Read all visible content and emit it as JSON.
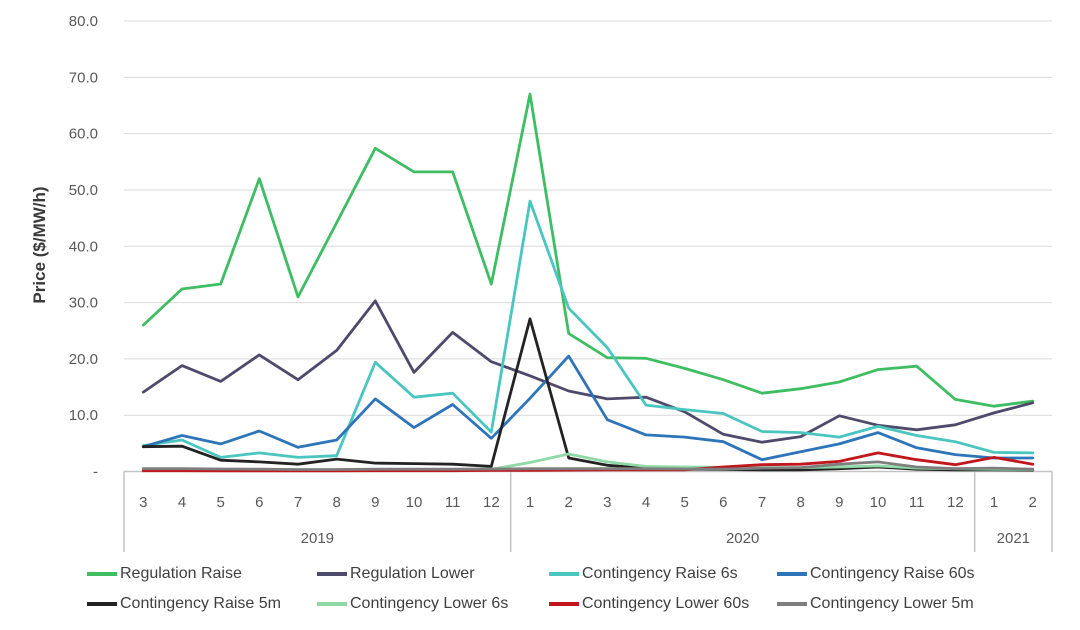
{
  "chart_data": {
    "type": "line",
    "title": "",
    "ylabel": "Price ($/MW/h)",
    "xlabel": "",
    "ylim": [
      0,
      80
    ],
    "grid": true,
    "legend_position": "bottom",
    "y_tick_values": [
      0,
      10,
      20,
      30,
      40,
      50,
      60,
      70,
      80
    ],
    "y_tick_labels": [
      "-",
      "10.0",
      "20.0",
      "30.0",
      "40.0",
      "50.0",
      "60.0",
      "70.0",
      "80.0"
    ],
    "x_groups": [
      {
        "year": "2019",
        "months": [
          "3",
          "4",
          "5",
          "6",
          "7",
          "8",
          "9",
          "10",
          "11",
          "12"
        ]
      },
      {
        "year": "2020",
        "months": [
          "1",
          "2",
          "3",
          "4",
          "5",
          "6",
          "7",
          "8",
          "9",
          "10",
          "11",
          "12"
        ]
      },
      {
        "year": "2021",
        "months": [
          "1",
          "2"
        ]
      }
    ],
    "legend_rows": [
      [
        0,
        1,
        2,
        3
      ],
      [
        4,
        5,
        6,
        7
      ]
    ],
    "series": [
      {
        "name": "Regulation Raise",
        "color": "#3ebd62",
        "values": [
          26.0,
          32.4,
          33.3,
          52.0,
          31.0,
          44.2,
          57.4,
          53.2,
          53.2,
          33.3,
          67.0,
          24.5,
          20.2,
          20.1,
          18.3,
          16.3,
          13.9,
          14.7,
          15.9,
          18.1,
          18.7,
          12.8,
          11.6,
          12.5
        ]
      },
      {
        "name": "Regulation Lower",
        "color": "#4e4a6b",
        "values": [
          14.1,
          18.8,
          16.0,
          20.7,
          16.3,
          21.5,
          30.3,
          17.6,
          24.7,
          19.5,
          17.0,
          14.3,
          12.9,
          13.2,
          10.6,
          6.6,
          5.2,
          6.2,
          9.9,
          8.2,
          7.4,
          8.3,
          10.4,
          12.2
        ]
      },
      {
        "name": "Contingency Raise 6s",
        "color": "#4ac5bf",
        "values": [
          4.6,
          5.6,
          2.5,
          3.3,
          2.5,
          2.8,
          19.4,
          13.2,
          13.9,
          7.0,
          48.0,
          29.0,
          22.0,
          11.8,
          11.0,
          10.3,
          7.1,
          6.9,
          6.1,
          8.0,
          6.4,
          5.3,
          3.4,
          3.3
        ]
      },
      {
        "name": "Contingency Raise 60s",
        "color": "#2e74b9",
        "values": [
          4.4,
          6.4,
          4.9,
          7.2,
          4.3,
          5.6,
          12.9,
          7.8,
          11.9,
          5.9,
          13.0,
          20.5,
          9.2,
          6.5,
          6.1,
          5.3,
          2.1,
          3.5,
          4.9,
          6.9,
          4.2,
          3.0,
          2.4,
          2.4
        ]
      },
      {
        "name": "Contingency Raise 5m",
        "color": "#232323",
        "values": [
          4.4,
          4.5,
          2.0,
          1.7,
          1.3,
          2.2,
          1.5,
          1.4,
          1.3,
          0.9,
          27.1,
          2.4,
          1.1,
          0.6,
          0.4,
          0.35,
          0.3,
          0.3,
          0.5,
          0.8,
          0.4,
          0.3,
          0.3,
          0.25
        ]
      },
      {
        "name": "Contingency Lower 6s",
        "color": "#8ed9a5",
        "values": [
          0.3,
          0.3,
          0.3,
          0.3,
          0.25,
          0.25,
          0.3,
          0.3,
          0.35,
          0.4,
          1.6,
          3.1,
          1.7,
          0.9,
          0.8,
          0.75,
          0.7,
          0.7,
          0.8,
          1.0,
          0.6,
          0.5,
          0.4,
          0.35
        ]
      },
      {
        "name": "Contingency Lower 60s",
        "color": "#c0161c",
        "values": [
          0.15,
          0.15,
          0.1,
          0.1,
          0.1,
          0.1,
          0.15,
          0.15,
          0.15,
          0.2,
          0.2,
          0.25,
          0.3,
          0.3,
          0.3,
          0.8,
          1.2,
          1.3,
          1.8,
          3.3,
          2.1,
          1.2,
          2.5,
          1.3
        ]
      },
      {
        "name": "Contingency Lower 5m",
        "color": "#7e7e7e",
        "values": [
          0.5,
          0.5,
          0.45,
          0.4,
          0.35,
          0.35,
          0.4,
          0.4,
          0.4,
          0.45,
          0.5,
          0.5,
          0.5,
          0.5,
          0.45,
          0.4,
          0.6,
          0.7,
          1.3,
          1.7,
          0.8,
          0.5,
          0.6,
          0.4
        ]
      }
    ]
  }
}
